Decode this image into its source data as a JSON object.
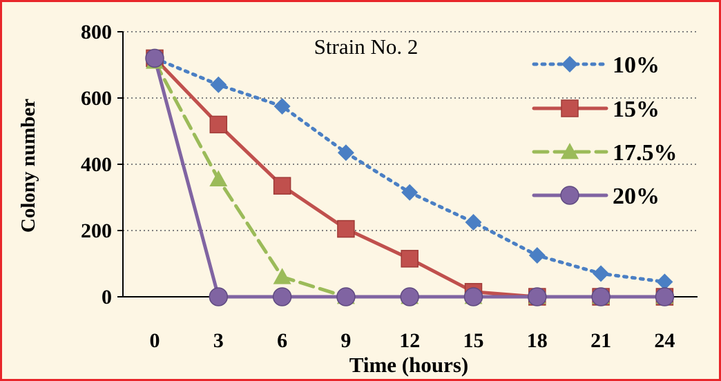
{
  "chart_data": {
    "type": "line",
    "title": "Strain No. 2",
    "xlabel": "Time (hours)",
    "ylabel": "Colony number",
    "x": [
      0,
      3,
      6,
      9,
      12,
      15,
      18,
      21,
      24
    ],
    "ylim": [
      0,
      800
    ],
    "yticks": [
      0,
      200,
      400,
      600,
      800
    ],
    "grid": "horizontal dotted",
    "legend_position": "top-right",
    "series": [
      {
        "name": "10%",
        "color": "#4a7fc4",
        "line": "dotted",
        "marker": "diamond",
        "values": [
          720,
          640,
          575,
          435,
          315,
          225,
          125,
          70,
          45
        ]
      },
      {
        "name": "15%",
        "color": "#c0504d",
        "line": "solid",
        "marker": "square",
        "values": [
          720,
          520,
          335,
          205,
          115,
          15,
          0,
          0,
          0
        ]
      },
      {
        "name": "17.5%",
        "color": "#9bbb59",
        "line": "dashed",
        "marker": "triangle",
        "values": [
          710,
          355,
          60,
          0,
          0,
          0,
          0,
          0,
          0
        ]
      },
      {
        "name": "20%",
        "color": "#8064a2",
        "line": "solid",
        "marker": "circle",
        "values": [
          720,
          0,
          0,
          0,
          0,
          0,
          0,
          0,
          0
        ]
      }
    ]
  },
  "colors": {
    "border": "#e8262a",
    "background": "#fdf6e4"
  }
}
